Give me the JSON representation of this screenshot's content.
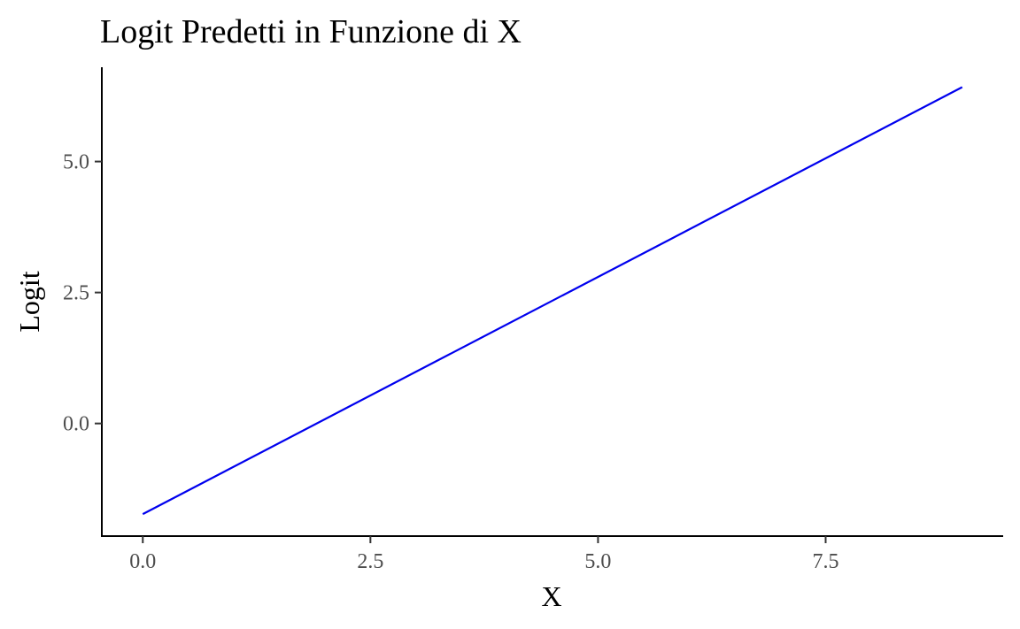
{
  "chart_data": {
    "type": "line",
    "title": "Logit Predetti in Funzione di X",
    "xlabel": "X",
    "ylabel": "Logit",
    "xlim": [
      -0.45,
      9.45
    ],
    "ylim": [
      -2.15,
      6.8
    ],
    "x_ticks": [
      {
        "value": 0.0,
        "label": "0.0"
      },
      {
        "value": 2.5,
        "label": "2.5"
      },
      {
        "value": 5.0,
        "label": "5.0"
      },
      {
        "value": 7.5,
        "label": "7.5"
      }
    ],
    "y_ticks": [
      {
        "value": 0.0,
        "label": "0.0"
      },
      {
        "value": 2.5,
        "label": "2.5"
      },
      {
        "value": 5.0,
        "label": "5.0"
      }
    ],
    "grid": false,
    "series": [
      {
        "color": "#0000ee",
        "x": [
          0,
          9
        ],
        "y": [
          -1.73,
          6.42
        ]
      }
    ]
  }
}
